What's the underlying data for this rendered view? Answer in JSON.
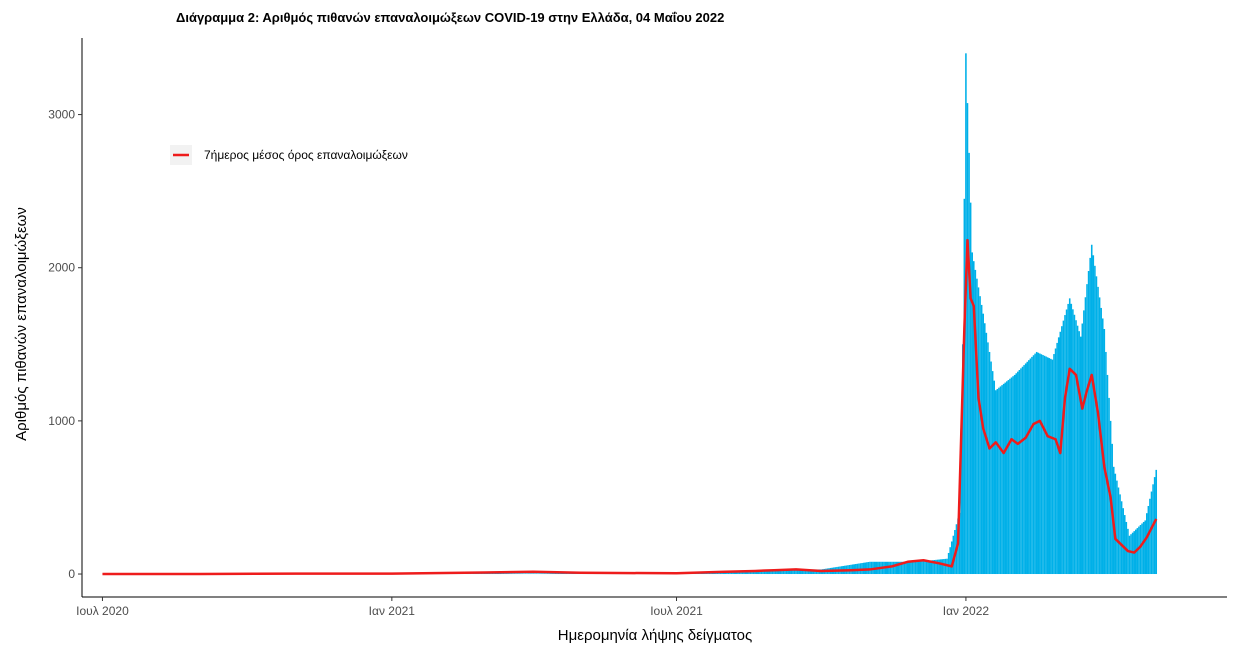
{
  "chart_data": {
    "type": "bar",
    "title": "Διάγραμμα 2: Αριθμός πιθανών επαναλοιμώξεων COVID-19 στην Ελλάδα, 04 Μαΐου 2022",
    "xlabel": "Ημερομηνία λήψης δείγματος",
    "ylabel": "Αριθμός πιθανών επαναλοιμώξεων",
    "x_axis": {
      "type": "date",
      "range": [
        "2020-06-18",
        "2022-06-16"
      ],
      "ticks": [
        {
          "date": "2020-07-01",
          "label": "Ιουλ 2020"
        },
        {
          "date": "2021-01-01",
          "label": "Ιαν 2021"
        },
        {
          "date": "2021-07-01",
          "label": "Ιουλ 2021"
        },
        {
          "date": "2022-01-01",
          "label": "Ιαν 2022"
        }
      ]
    },
    "y_axis": {
      "range": [
        -150,
        3500
      ],
      "ticks": [
        0,
        1000,
        2000,
        3000
      ]
    },
    "grid": false,
    "legend": {
      "position": "top-left",
      "entries": [
        "7ήμερος μέσος όρος επαναλοιμώξεων"
      ]
    },
    "series": [
      {
        "kind": "bar",
        "color": "#00b0e8",
        "description": "daily counts",
        "values": [
          [
            "2020-07-01",
            0
          ],
          [
            "2021-07-01",
            5
          ],
          [
            "2021-08-01",
            20
          ],
          [
            "2021-09-01",
            30
          ],
          [
            "2021-10-01",
            30
          ],
          [
            "2021-11-01",
            80
          ],
          [
            "2021-12-01",
            80
          ],
          [
            "2021-12-20",
            100
          ],
          [
            "2021-12-28",
            400
          ],
          [
            "2021-12-30",
            1500
          ],
          [
            "2022-01-01",
            3400
          ],
          [
            "2022-01-05",
            2100
          ],
          [
            "2022-01-12",
            1700
          ],
          [
            "2022-01-20",
            1200
          ],
          [
            "2022-02-01",
            1300
          ],
          [
            "2022-02-15",
            1450
          ],
          [
            "2022-02-25",
            1400
          ],
          [
            "2022-03-08",
            1800
          ],
          [
            "2022-03-15",
            1550
          ],
          [
            "2022-03-22",
            2150
          ],
          [
            "2022-03-30",
            1600
          ],
          [
            "2022-04-05",
            700
          ],
          [
            "2022-04-15",
            250
          ],
          [
            "2022-04-25",
            350
          ],
          [
            "2022-05-02",
            680
          ]
        ]
      },
      {
        "kind": "line",
        "name": "7ήμερος μέσος όρος επαναλοιμώξεων",
        "color": "#ee1c1c",
        "values": [
          [
            "2020-07-01",
            0
          ],
          [
            "2020-09-01",
            0
          ],
          [
            "2020-11-01",
            3
          ],
          [
            "2021-01-01",
            3
          ],
          [
            "2021-03-01",
            10
          ],
          [
            "2021-04-01",
            15
          ],
          [
            "2021-05-01",
            8
          ],
          [
            "2021-07-01",
            5
          ],
          [
            "2021-08-01",
            15
          ],
          [
            "2021-08-20",
            20
          ],
          [
            "2021-09-01",
            25
          ],
          [
            "2021-09-15",
            30
          ],
          [
            "2021-10-01",
            20
          ],
          [
            "2021-10-20",
            25
          ],
          [
            "2021-11-01",
            30
          ],
          [
            "2021-11-15",
            50
          ],
          [
            "2021-11-25",
            80
          ],
          [
            "2021-12-05",
            90
          ],
          [
            "2021-12-15",
            70
          ],
          [
            "2021-12-23",
            50
          ],
          [
            "2021-12-27",
            200
          ],
          [
            "2021-12-29",
            900
          ],
          [
            "2021-12-31",
            1600
          ],
          [
            "2022-01-02",
            2180
          ],
          [
            "2022-01-04",
            1800
          ],
          [
            "2022-01-06",
            1750
          ],
          [
            "2022-01-09",
            1150
          ],
          [
            "2022-01-12",
            950
          ],
          [
            "2022-01-16",
            820
          ],
          [
            "2022-01-20",
            860
          ],
          [
            "2022-01-25",
            790
          ],
          [
            "2022-01-30",
            880
          ],
          [
            "2022-02-03",
            850
          ],
          [
            "2022-02-08",
            890
          ],
          [
            "2022-02-13",
            980
          ],
          [
            "2022-02-17",
            1000
          ],
          [
            "2022-02-22",
            900
          ],
          [
            "2022-02-27",
            880
          ],
          [
            "2022-03-02",
            790
          ],
          [
            "2022-03-05",
            1150
          ],
          [
            "2022-03-08",
            1340
          ],
          [
            "2022-03-12",
            1300
          ],
          [
            "2022-03-16",
            1080
          ],
          [
            "2022-03-19",
            1200
          ],
          [
            "2022-03-22",
            1300
          ],
          [
            "2022-03-26",
            1050
          ],
          [
            "2022-03-30",
            700
          ],
          [
            "2022-04-03",
            500
          ],
          [
            "2022-04-06",
            230
          ],
          [
            "2022-04-10",
            190
          ],
          [
            "2022-04-14",
            150
          ],
          [
            "2022-04-18",
            140
          ],
          [
            "2022-04-22",
            180
          ],
          [
            "2022-04-26",
            240
          ],
          [
            "2022-05-02",
            360
          ]
        ]
      }
    ]
  }
}
